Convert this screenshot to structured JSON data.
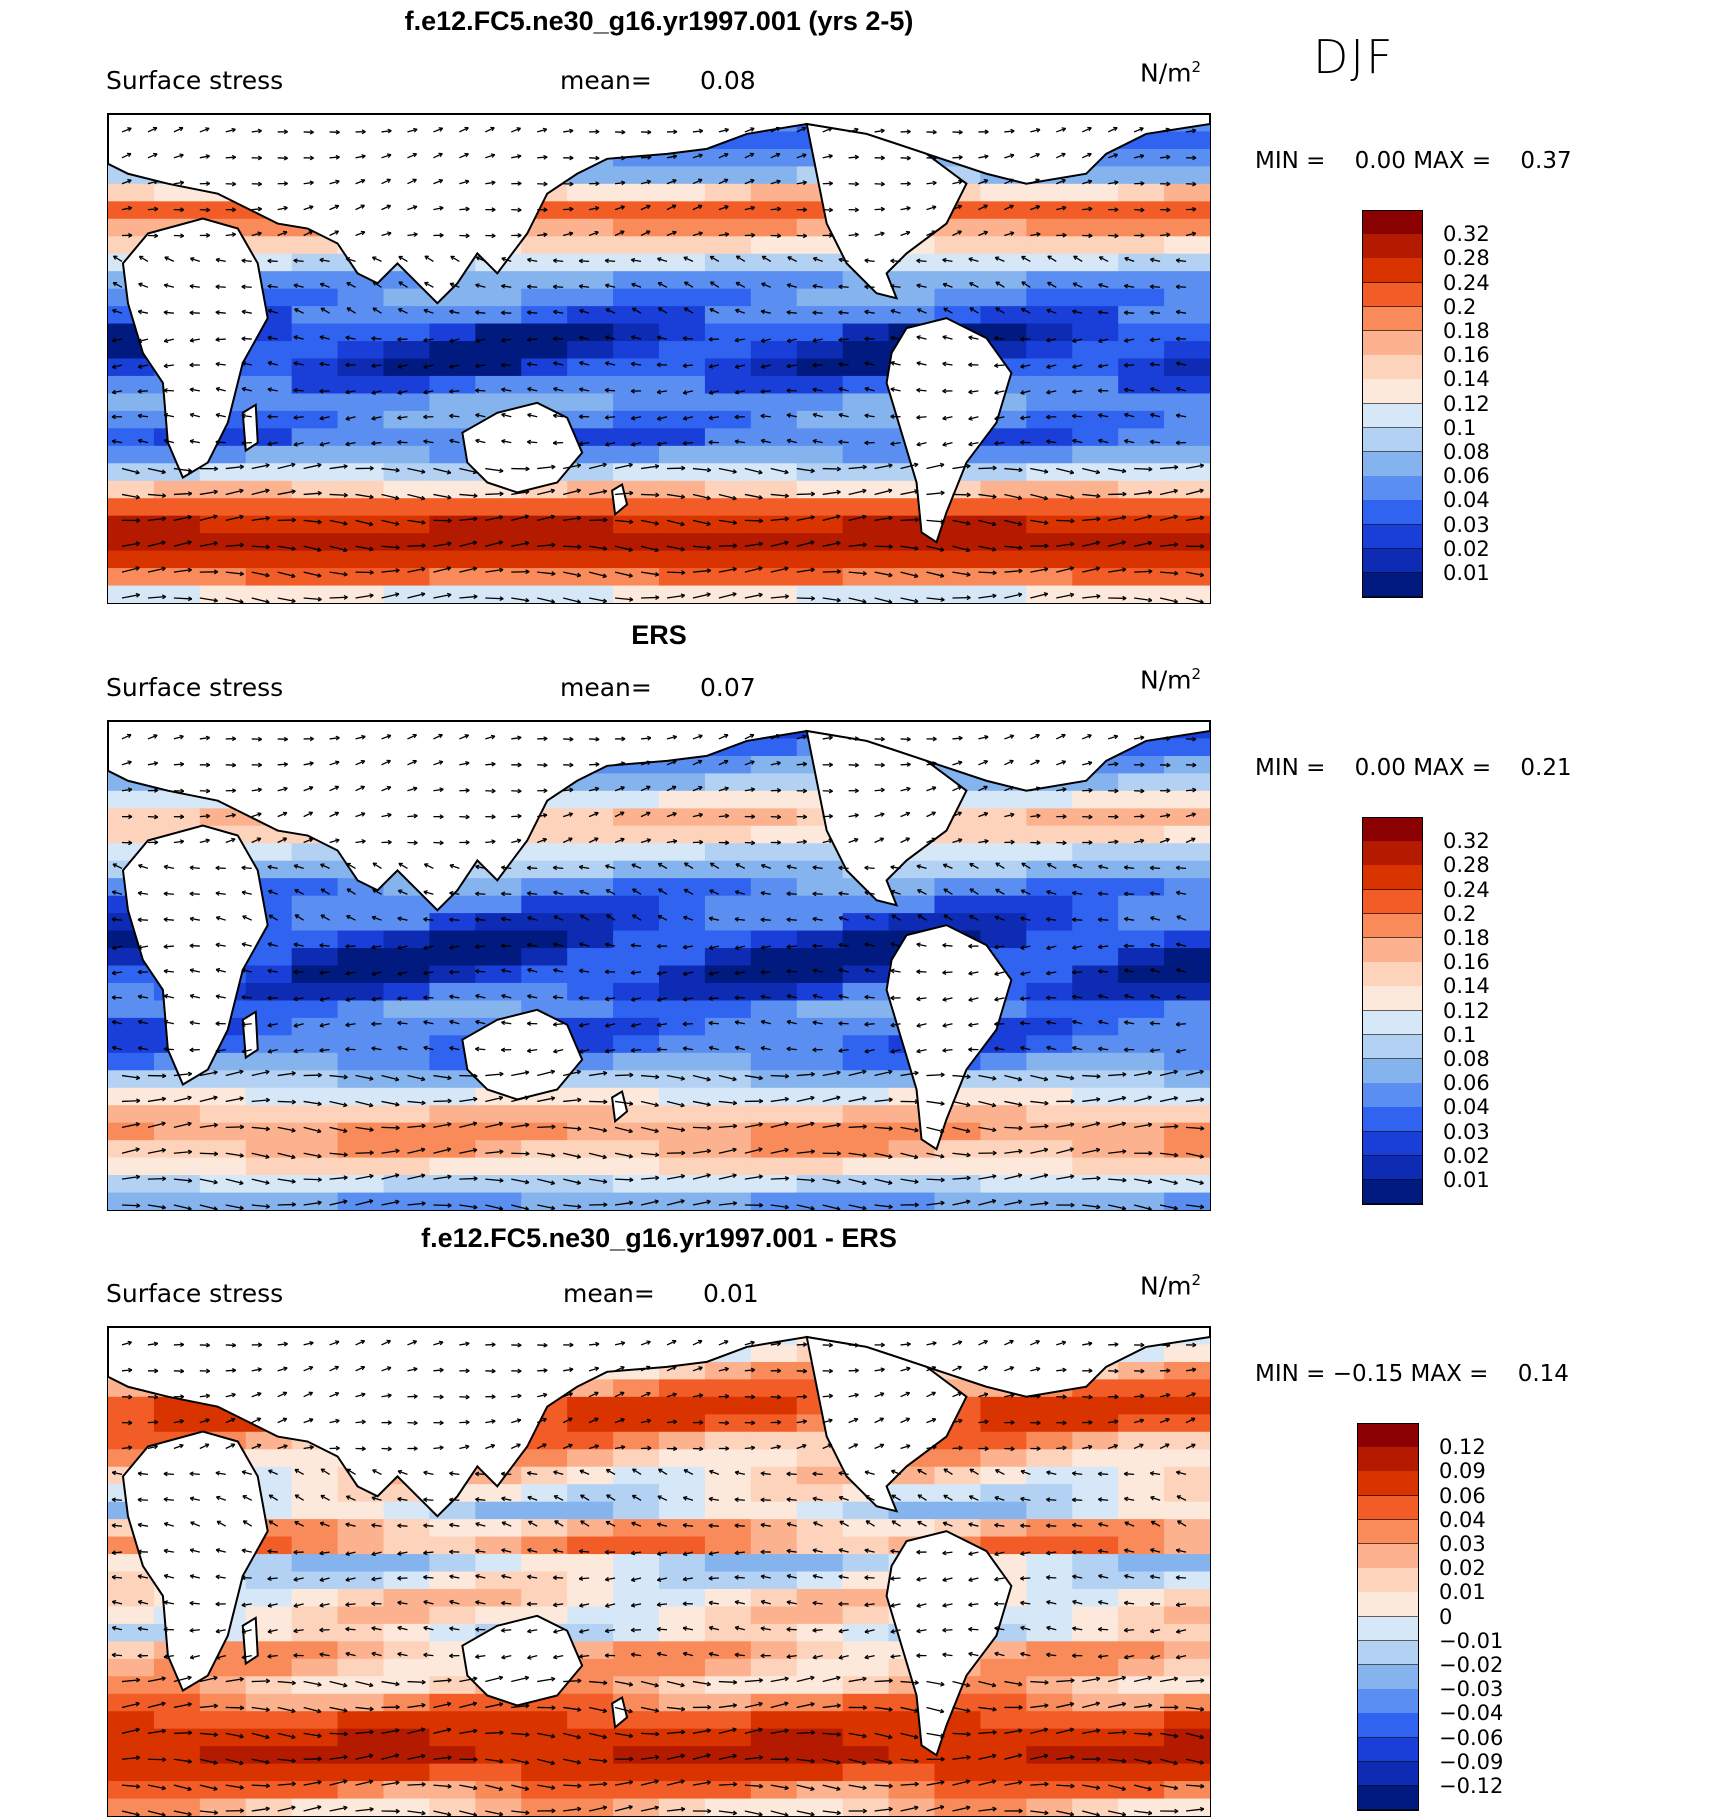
{
  "season": "DJF",
  "panels": [
    {
      "id": "model",
      "title": "f.e12.FC5.ne30_g16.yr1997.001 (yrs 2-5)",
      "variable": "Surface stress",
      "mean_label": "mean=",
      "mean_value": "0.08",
      "units_base": "N/m",
      "units_exp": "2",
      "min_label": "MIN =",
      "min_value": "0.00",
      "max_label": "MAX =",
      "max_value": "0.37",
      "colorbar_labels": [
        "0.32",
        "0.28",
        "0.24",
        "0.2",
        "0.18",
        "0.16",
        "0.14",
        "0.12",
        "0.1",
        "0.08",
        "0.06",
        "0.04",
        "0.03",
        "0.02",
        "0.01"
      ],
      "colorbar_colors": [
        "#8b0000",
        "#b31a00",
        "#d93300",
        "#f25c26",
        "#f98a59",
        "#fcb28f",
        "#fdd3bc",
        "#fde9dc",
        "#d6e8f7",
        "#b3d1f2",
        "#85b3ee",
        "#5a8ef0",
        "#2f63f0",
        "#1a3fd9",
        "#0d2bb3",
        "#001a80"
      ],
      "zonal_bands": [
        0.05,
        0.05,
        0.06,
        0.08,
        0.15,
        0.22,
        0.18,
        0.14,
        0.1,
        0.06,
        0.05,
        0.04,
        0.02,
        0.015,
        0.02,
        0.04,
        0.06,
        0.05,
        0.04,
        0.06,
        0.1,
        0.15,
        0.22,
        0.28,
        0.3,
        0.26,
        0.2,
        0.12
      ]
    },
    {
      "id": "obs",
      "title": "ERS",
      "variable": "Surface stress",
      "mean_label": "mean=",
      "mean_value": "0.07",
      "units_base": "N/m",
      "units_exp": "2",
      "min_label": "MIN =",
      "min_value": "0.00",
      "max_label": "MAX =",
      "max_value": "0.21",
      "colorbar_labels": [
        "0.32",
        "0.28",
        "0.24",
        "0.2",
        "0.18",
        "0.16",
        "0.14",
        "0.12",
        "0.1",
        "0.08",
        "0.06",
        "0.04",
        "0.03",
        "0.02",
        "0.01"
      ],
      "colorbar_colors": [
        "#8b0000",
        "#b31a00",
        "#d93300",
        "#f25c26",
        "#f98a59",
        "#fcb28f",
        "#fdd3bc",
        "#fde9dc",
        "#d6e8f7",
        "#b3d1f2",
        "#85b3ee",
        "#5a8ef0",
        "#2f63f0",
        "#1a3fd9",
        "#0d2bb3",
        "#001a80"
      ],
      "zonal_bands": [
        0.04,
        0.05,
        0.06,
        0.08,
        0.12,
        0.16,
        0.14,
        0.1,
        0.08,
        0.05,
        0.04,
        0.03,
        0.02,
        0.015,
        0.02,
        0.03,
        0.05,
        0.04,
        0.04,
        0.05,
        0.08,
        0.12,
        0.16,
        0.18,
        0.17,
        0.14,
        0.1,
        0.06
      ]
    },
    {
      "id": "diff",
      "title": "f.e12.FC5.ne30_g16.yr1997.001 - ERS",
      "variable": "Surface stress",
      "mean_label": "mean=",
      "mean_value": "0.01",
      "units_base": "N/m",
      "units_exp": "2",
      "min_label": "MIN =",
      "min_value": "−0.15",
      "max_label": "MAX =",
      "max_value": "0.14",
      "colorbar_labels": [
        "0.12",
        "0.09",
        "0.06",
        "0.04",
        "0.03",
        "0.02",
        "0.01",
        "0",
        "−0.01",
        "−0.02",
        "−0.03",
        "−0.04",
        "−0.06",
        "−0.09",
        "−0.12"
      ],
      "colorbar_colors": [
        "#8b0000",
        "#b31a00",
        "#d93300",
        "#f25c26",
        "#f98a59",
        "#fcb28f",
        "#fdd3bc",
        "#fde9dc",
        "#d6e8f7",
        "#b3d1f2",
        "#85b3ee",
        "#5a8ef0",
        "#2f63f0",
        "#1a3fd9",
        "#0d2bb3",
        "#001a80"
      ],
      "zonal_bands": [
        0.01,
        0.0,
        0.02,
        0.04,
        0.06,
        0.05,
        0.03,
        0.02,
        0.01,
        0.0,
        -0.01,
        0.02,
        0.03,
        -0.01,
        0.0,
        0.01,
        0.01,
        0.0,
        0.02,
        0.02,
        0.02,
        0.04,
        0.06,
        0.08,
        0.1,
        0.07,
        0.04,
        0.02
      ]
    }
  ]
}
